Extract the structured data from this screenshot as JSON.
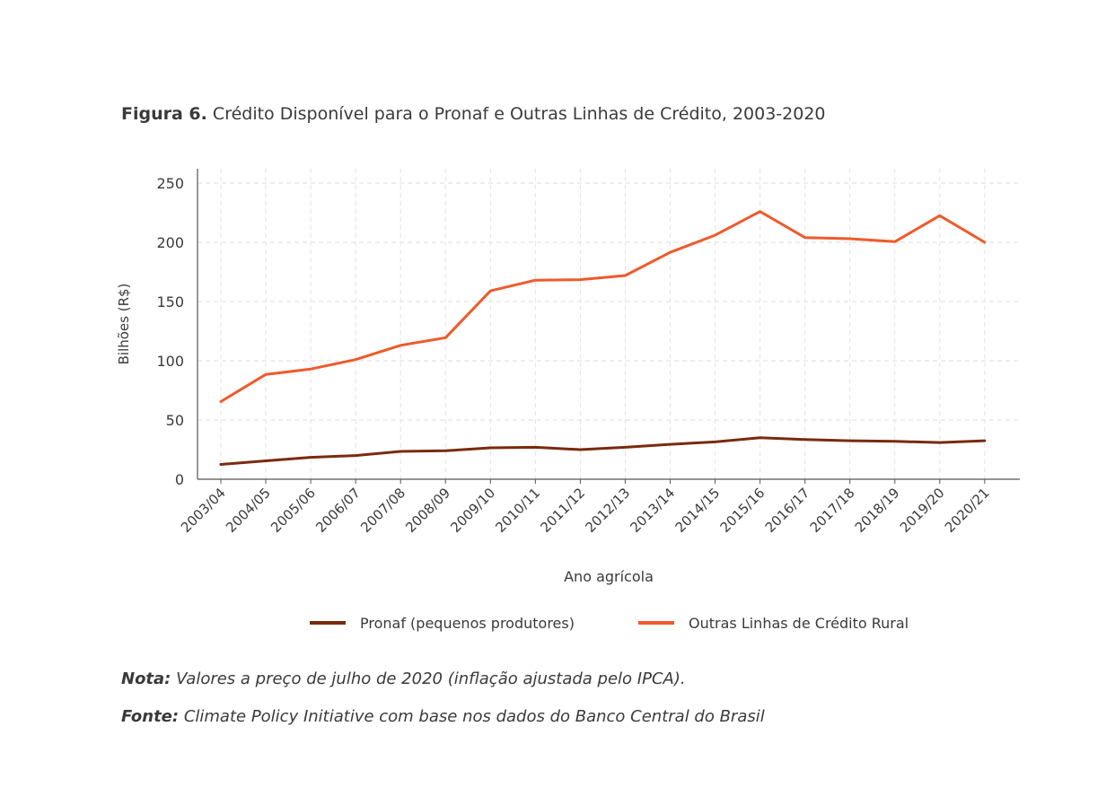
{
  "figure_label": "Figura 6.",
  "figure_title": "Crédito Disponível para o Pronaf e Outras Linhas de Crédito, 2003-2020",
  "note_label": "Nota:",
  "note_text": "Valores a preço de julho de 2020 (inflação ajustada pelo IPCA).",
  "source_label": "Fonte:",
  "source_text": "Climate Policy Initiative com base nos dados do Banco Central do Brasil",
  "chart_data": {
    "type": "line",
    "xlabel": "Ano agrícola",
    "ylabel": "Bilhões (R$)",
    "ylim": [
      0,
      250
    ],
    "yticks": [
      0,
      50,
      100,
      150,
      200,
      250
    ],
    "grid": true,
    "legend_position": "bottom",
    "categories": [
      "2003/04",
      "2004/05",
      "2005/06",
      "2006/07",
      "2007/08",
      "2008/09",
      "2009/10",
      "2010/11",
      "2011/12",
      "2012/13",
      "2013/14",
      "2014/15",
      "2015/16",
      "2016/17",
      "2017/18",
      "2018/19",
      "2019/20",
      "2020/21"
    ],
    "series": [
      {
        "name": "Pronaf (pequenos produtores)",
        "color": "#7a2a0e",
        "values": [
          12.5,
          15.5,
          18.5,
          20,
          23.5,
          24,
          26.5,
          27,
          25,
          27,
          29.5,
          31.5,
          35,
          33.5,
          32.5,
          32,
          31,
          32.5
        ]
      },
      {
        "name": "Outras Linhas de Crédito Rural",
        "color": "#ef5a2b",
        "values": [
          65.5,
          88.5,
          93,
          101,
          113,
          119.5,
          159,
          168,
          168.5,
          172,
          191.5,
          206,
          226,
          204,
          203,
          200.5,
          222.5,
          200
        ]
      }
    ]
  }
}
